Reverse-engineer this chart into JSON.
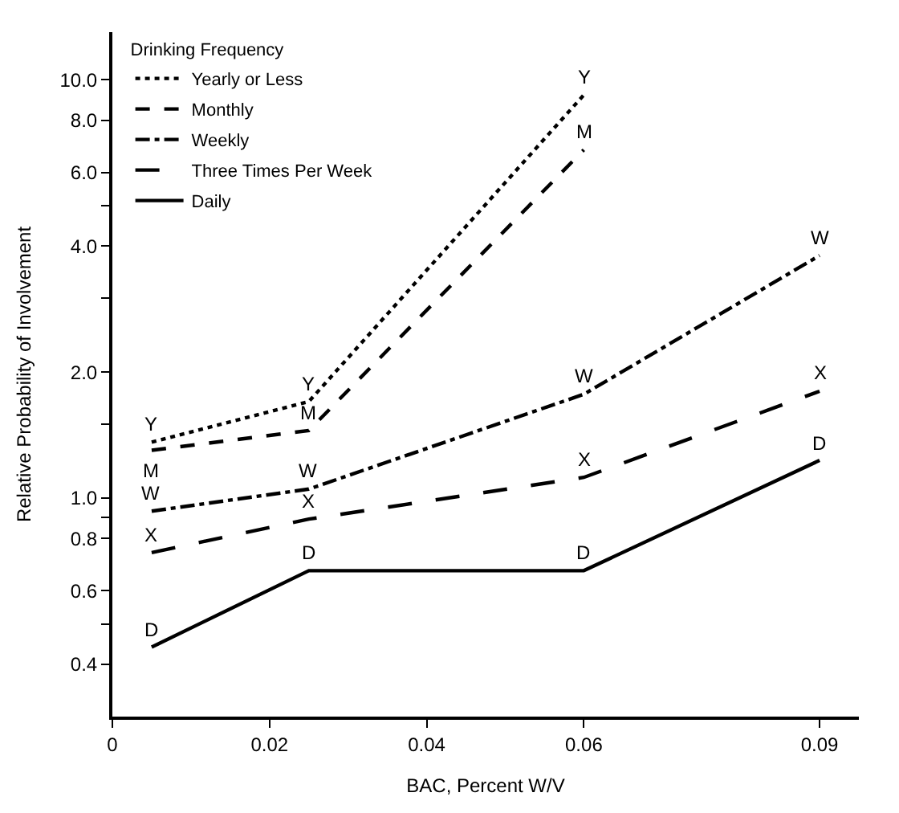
{
  "chart_data": {
    "type": "line",
    "xlabel": "BAC, Percent W/V",
    "ylabel": "Relative Probability of Involvement",
    "legend_title": "Drinking Frequency",
    "legend": "top left",
    "log": "y",
    "grid": false,
    "marker": "none",
    "x": [
      0.005,
      0.025,
      0.06,
      0.09
    ],
    "xlim": [
      0,
      0.095
    ],
    "xticks": [
      0,
      {
        "value": 0.02,
        "label": "0.02"
      },
      {
        "value": 0.04,
        "label": "0.04"
      },
      {
        "value": 0.06,
        "label": "0.06"
      },
      {
        "value": 0.09,
        "label": "0.09"
      }
    ],
    "ylim": [
      0.3,
      13
    ],
    "yticks": [
      {
        "value": 0.4,
        "label": "0.4"
      },
      {
        "value": 0.5,
        "label": null
      },
      {
        "value": 0.6,
        "label": "0.6"
      },
      {
        "value": 0.8,
        "label": "0.8"
      },
      {
        "value": 0.9,
        "label": null
      },
      {
        "value": 1,
        "label": "1.0"
      },
      {
        "value": 1.5,
        "label": null
      },
      {
        "value": 2,
        "label": "2.0"
      },
      {
        "value": 3,
        "label": null
      },
      {
        "value": 4,
        "label": "4.0"
      },
      {
        "value": 5,
        "label": null
      },
      {
        "value": 6,
        "label": "6.0"
      },
      {
        "value": 8,
        "label": "8.0"
      },
      {
        "value": 10,
        "label": "10.0"
      }
    ],
    "series": [
      {
        "name": "Yearly or Less",
        "color": "#000000",
        "line_style": "dotted",
        "x": [
          0.005,
          0.025,
          0.06
        ],
        "values": [
          1.36,
          1.7,
          9.2
        ]
      },
      {
        "name": "Monthly",
        "color": "#000000",
        "line_style": "dashed",
        "x": [
          0.005,
          0.025,
          0.06
        ],
        "values": [
          1.3,
          1.45,
          6.8
        ]
      },
      {
        "name": "Weekly",
        "color": "#000000",
        "line_style": "dashdot",
        "values": [
          0.93,
          1.05,
          1.77,
          3.8
        ]
      },
      {
        "name": "Three Times Per Week",
        "color": "#000000",
        "line_style": "longdash",
        "values": [
          0.74,
          0.89,
          1.12,
          1.8
        ]
      },
      {
        "name": "Daily",
        "color": "#000000",
        "line_style": "solid",
        "values": [
          0.44,
          0.67,
          0.67,
          1.23
        ]
      }
    ],
    "annotations": [
      {
        "text": "Y",
        "x": 0.005,
        "y": 1.36
      },
      {
        "text": "Y",
        "x": 0.025,
        "y": 1.7
      },
      {
        "text": "Y",
        "x": 0.06,
        "y": 9.2
      },
      {
        "text": "M",
        "x": 0.005,
        "y": 1.3
      },
      {
        "text": "M",
        "x": 0.025,
        "y": 1.45
      },
      {
        "text": "M",
        "x": 0.06,
        "y": 6.8
      },
      {
        "text": "W",
        "x": 0.005,
        "y": 0.93
      },
      {
        "text": "W",
        "x": 0.025,
        "y": 1.05
      },
      {
        "text": "W",
        "x": 0.06,
        "y": 1.77
      },
      {
        "text": "W",
        "x": 0.09,
        "y": 3.8
      },
      {
        "text": "X",
        "x": 0.005,
        "y": 0.74
      },
      {
        "text": "X",
        "x": 0.025,
        "y": 0.89
      },
      {
        "text": "X",
        "x": 0.06,
        "y": 1.12
      },
      {
        "text": "X",
        "x": 0.09,
        "y": 1.8
      },
      {
        "text": "D",
        "x": 0.005,
        "y": 0.44
      },
      {
        "text": "D",
        "x": 0.025,
        "y": 0.67
      },
      {
        "text": "D",
        "x": 0.06,
        "y": 0.67
      },
      {
        "text": "D",
        "x": 0.09,
        "y": 1.23
      }
    ]
  }
}
